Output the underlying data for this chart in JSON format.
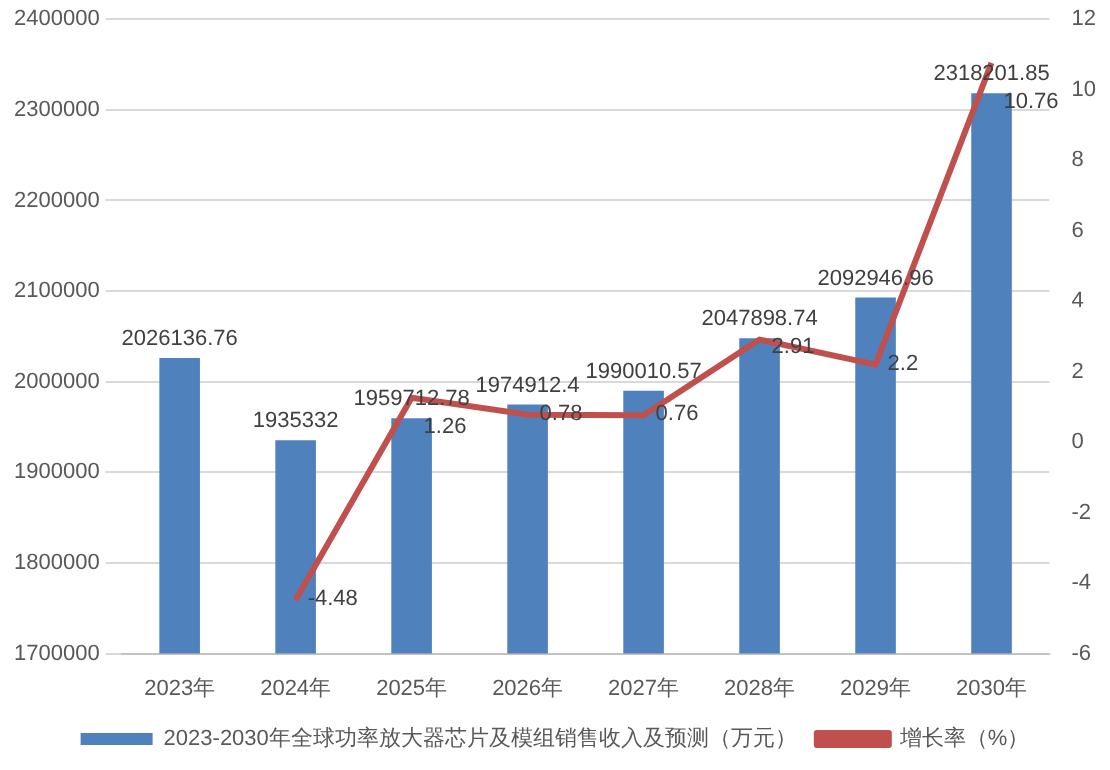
{
  "chart_data": {
    "type": "bar",
    "categories": [
      "2023年",
      "2024年",
      "2025年",
      "2026年",
      "2027年",
      "2028年",
      "2029年",
      "2030年"
    ],
    "series": [
      {
        "name": "2023-2030年全球功率放大器芯片及模组销售收入及预测（万元）",
        "color": "#4f81bd",
        "values": [
          2026136.76,
          1935332,
          1959712.78,
          1974912.4,
          1990010.57,
          2047898.74,
          2092946.96,
          2318201.85
        ]
      },
      {
        "name": "增长率（%）",
        "type": "line",
        "axis": "y2",
        "color": "#c0504d",
        "values": [
          null,
          -4.48,
          1.26,
          0.78,
          0.76,
          2.91,
          2.2,
          10.76
        ]
      }
    ],
    "ylim": [
      1700000,
      2400000
    ],
    "yticks": [
      1700000,
      1800000,
      1900000,
      2000000,
      2100000,
      2200000,
      2300000,
      2400000
    ],
    "y2lim": [
      -6,
      12
    ],
    "y2ticks": [
      -6,
      -4,
      -2,
      0,
      2,
      4,
      6,
      8,
      10,
      12
    ],
    "grid": "y",
    "legend": "bottom",
    "marker": "none",
    "data_labels": true
  }
}
